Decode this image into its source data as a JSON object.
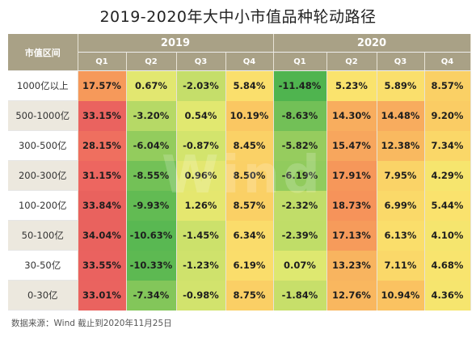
{
  "title": "2019-2020年大中小市值品种轮动路径",
  "footnote": "数据来源：Wind    截止到2020年11月25日",
  "watermark": "Wind",
  "colors": {
    "header": "#a9a186",
    "alt_row": "#ece8de"
  },
  "chart_data": {
    "type": "table",
    "row_header": "市值区间",
    "years": [
      "2019",
      "2020"
    ],
    "quarters": [
      "Q1",
      "Q2",
      "Q3",
      "Q4",
      "Q1",
      "Q2",
      "Q3",
      "Q4"
    ],
    "rows": [
      {
        "label": "1000亿以上",
        "values": [
          "17.57%",
          "0.67%",
          "-2.03%",
          "5.84%",
          "-11.48%",
          "5.23%",
          "5.89%",
          "8.57%"
        ]
      },
      {
        "label": "500-1000亿",
        "values": [
          "33.15%",
          "-3.20%",
          "0.54%",
          "10.19%",
          "-8.63%",
          "14.30%",
          "14.48%",
          "9.20%"
        ]
      },
      {
        "label": "300-500亿",
        "values": [
          "28.15%",
          "-6.04%",
          "-0.87%",
          "8.45%",
          "-5.82%",
          "15.47%",
          "12.38%",
          "7.34%"
        ]
      },
      {
        "label": "200-300亿",
        "values": [
          "31.15%",
          "-8.55%",
          "0.96%",
          "8.50%",
          "-6.19%",
          "17.91%",
          "7.95%",
          "4.29%"
        ]
      },
      {
        "label": "100-200亿",
        "values": [
          "33.84%",
          "-9.93%",
          "1.26%",
          "8.57%",
          "-2.32%",
          "18.73%",
          "6.99%",
          "5.44%"
        ]
      },
      {
        "label": "50-100亿",
        "values": [
          "34.04%",
          "-10.63%",
          "-1.45%",
          "6.34%",
          "-2.39%",
          "17.13%",
          "6.13%",
          "4.10%"
        ]
      },
      {
        "label": "30-50亿",
        "values": [
          "33.55%",
          "-10.33%",
          "-1.23%",
          "6.19%",
          "0.07%",
          "13.23%",
          "7.11%",
          "4.68%"
        ]
      },
      {
        "label": "0-30亿",
        "values": [
          "33.01%",
          "-7.34%",
          "-0.98%",
          "8.75%",
          "-1.84%",
          "12.76%",
          "10.94%",
          "4.36%"
        ]
      }
    ]
  }
}
